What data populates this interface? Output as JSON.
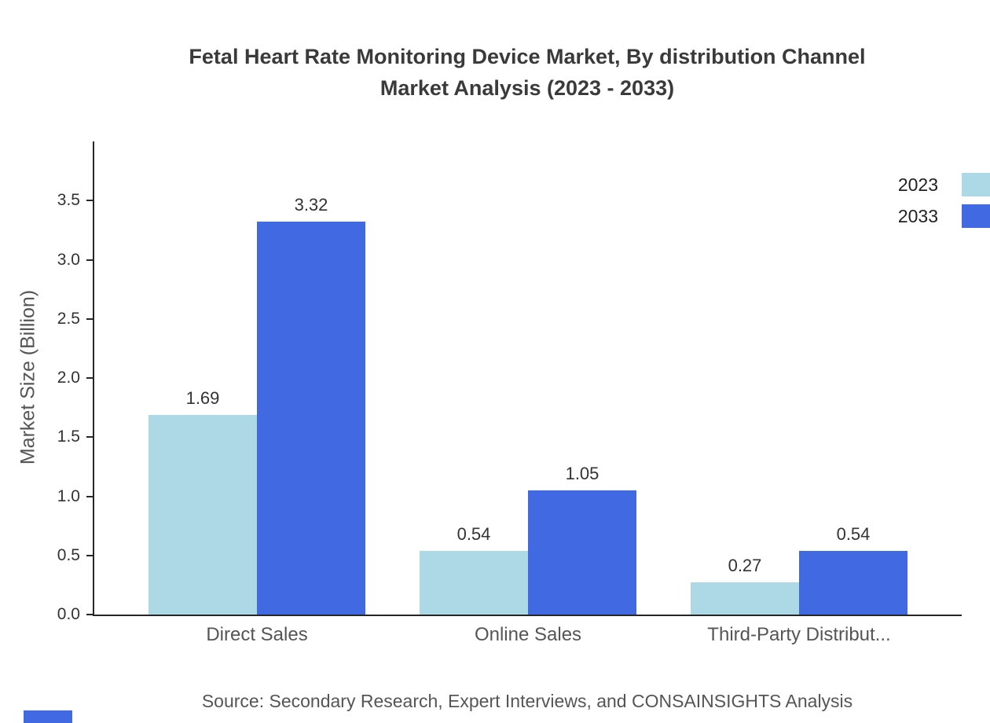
{
  "title": {
    "line1": "Fetal Heart Rate Monitoring Device Market, By distribution Channel",
    "line2": "Market Analysis (2023 - 2033)"
  },
  "source_note": "Source: Secondary Research, Expert Interviews, and CONSAINSIGHTS Analysis",
  "accent_color": "#4169E1",
  "chart_data": {
    "type": "bar",
    "title": "Fetal Heart Rate Monitoring Device Market, By distribution Channel Market Analysis (2023 - 2033)",
    "ylabel": "Market Size (Billion)",
    "xlabel": "",
    "categories": [
      "Direct Sales",
      "Online Sales",
      "Third-Party Distribut..."
    ],
    "series": [
      {
        "name": "2023",
        "color": "#ADD8E6",
        "values": [
          1.69,
          0.54,
          0.27
        ]
      },
      {
        "name": "2033",
        "color": "#4169E1",
        "values": [
          3.32,
          1.05,
          0.54
        ]
      }
    ],
    "yticks": [
      0,
      0.5,
      1,
      1.5,
      2,
      2.5,
      3,
      3.5
    ],
    "ylim": [
      0,
      4
    ],
    "grid": false,
    "legend_position": "top-right"
  }
}
